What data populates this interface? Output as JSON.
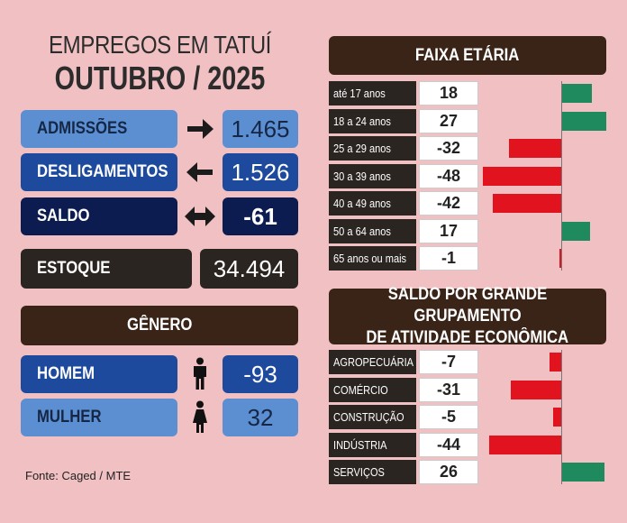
{
  "title": {
    "line1": "EMPREGOS EM TATUÍ",
    "line2": "OUTUBRO / 2025"
  },
  "summary": {
    "admissoes": {
      "label": "ADMISSÕES",
      "value": "1.465"
    },
    "desligamentos": {
      "label": "DESLIGAMENTOS",
      "value": "1.526"
    },
    "saldo": {
      "label": "SALDO",
      "value": "-61"
    },
    "estoque": {
      "label": "ESTOQUE",
      "value": "34.494"
    }
  },
  "genero": {
    "title": "GÊNERO",
    "homem": {
      "label": "HOMEM",
      "value": "-93"
    },
    "mulher": {
      "label": "MULHER",
      "value": "32"
    }
  },
  "source": "Fonte: Caged / MTE",
  "colors": {
    "positive": "#1f8a5d",
    "negative": "#e0131e",
    "background": "#f1c0c2",
    "header": "#3a2418"
  },
  "chart_data": [
    {
      "type": "bar",
      "title": "FAIXA ETÁRIA",
      "categories": [
        "até 17 anos",
        "18 a 24 anos",
        "25 a 29 anos",
        "30 a 39 anos",
        "40 a 49 anos",
        "50 a 64 anos",
        "65 anos ou mais"
      ],
      "values": [
        18,
        27,
        -32,
        -48,
        -42,
        17,
        -1
      ],
      "orientation": "horizontal"
    },
    {
      "type": "bar",
      "title": "SALDO POR GRANDE GRUPAMENTO DE ATIVIDADE ECONÔMICA",
      "title_lines": [
        "SALDO POR GRANDE GRUPAMENTO",
        "DE ATIVIDADE ECONÔMICA"
      ],
      "categories": [
        "AGROPECUÁRIA",
        "COMÉRCIO",
        "CONSTRUÇÃO",
        "INDÚSTRIA",
        "SERVIÇOS"
      ],
      "values": [
        -7,
        -31,
        -5,
        -44,
        26
      ],
      "orientation": "horizontal"
    }
  ]
}
